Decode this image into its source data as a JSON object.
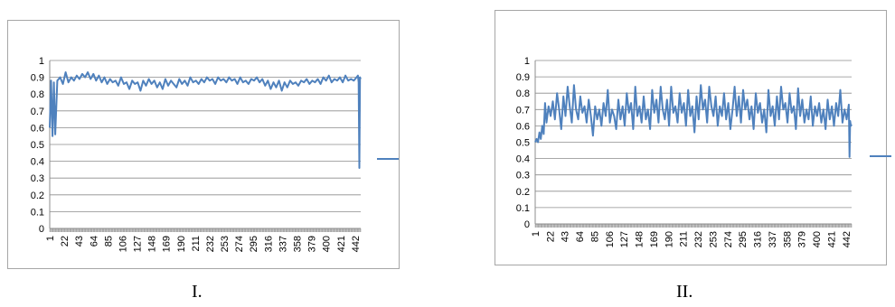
{
  "captions": [
    "I.",
    "II."
  ],
  "colors": {
    "series": "#4f81bd",
    "grid": "#8c8c8c",
    "axis": "#8c8c8c",
    "border": "#a6a6a6"
  },
  "chart_data": [
    {
      "type": "line",
      "title": "",
      "xlabel": "",
      "ylabel": "",
      "ylim": [
        0,
        1
      ],
      "y_ticks": [
        "0",
        "0.1",
        "0.2",
        "0.3",
        "0.4",
        "0.5",
        "0.6",
        "0.7",
        "0.8",
        "0.9",
        "1"
      ],
      "x_tick_labels": [
        "1",
        "22",
        "43",
        "64",
        "85",
        "106",
        "127",
        "148",
        "169",
        "190",
        "211",
        "232",
        "253",
        "274",
        "295",
        "316",
        "337",
        "358",
        "379",
        "400",
        "421",
        "442"
      ],
      "xlim": [
        1,
        450
      ],
      "grid": true,
      "legend": "right",
      "series": [
        {
          "x": [
            1,
            3,
            5,
            7,
            9,
            12,
            16,
            20,
            24,
            28,
            32,
            36,
            40,
            44,
            48,
            52,
            56,
            60,
            64,
            68,
            72,
            76,
            80,
            84,
            88,
            92,
            96,
            100,
            104,
            108,
            112,
            116,
            120,
            124,
            128,
            132,
            136,
            140,
            144,
            148,
            152,
            156,
            160,
            164,
            168,
            172,
            176,
            180,
            184,
            188,
            192,
            196,
            200,
            204,
            208,
            212,
            216,
            220,
            224,
            228,
            232,
            236,
            240,
            244,
            248,
            252,
            256,
            260,
            264,
            268,
            272,
            276,
            280,
            284,
            288,
            292,
            296,
            300,
            304,
            308,
            312,
            316,
            320,
            324,
            328,
            332,
            336,
            340,
            344,
            348,
            352,
            356,
            360,
            364,
            368,
            372,
            376,
            380,
            384,
            388,
            392,
            396,
            400,
            404,
            408,
            412,
            416,
            420,
            424,
            428,
            432,
            436,
            440,
            444,
            446,
            447,
            448,
            449,
            450
          ],
          "values": [
            0.6,
            0.88,
            0.55,
            0.87,
            0.56,
            0.88,
            0.9,
            0.86,
            0.93,
            0.87,
            0.9,
            0.88,
            0.91,
            0.89,
            0.92,
            0.9,
            0.93,
            0.89,
            0.92,
            0.88,
            0.91,
            0.87,
            0.9,
            0.86,
            0.89,
            0.87,
            0.88,
            0.85,
            0.9,
            0.86,
            0.87,
            0.83,
            0.88,
            0.86,
            0.87,
            0.82,
            0.88,
            0.85,
            0.89,
            0.86,
            0.88,
            0.84,
            0.87,
            0.83,
            0.89,
            0.85,
            0.88,
            0.86,
            0.84,
            0.89,
            0.86,
            0.88,
            0.85,
            0.9,
            0.87,
            0.88,
            0.86,
            0.89,
            0.87,
            0.9,
            0.88,
            0.89,
            0.86,
            0.9,
            0.88,
            0.89,
            0.87,
            0.9,
            0.88,
            0.89,
            0.86,
            0.9,
            0.87,
            0.88,
            0.86,
            0.89,
            0.88,
            0.9,
            0.87,
            0.89,
            0.85,
            0.88,
            0.83,
            0.87,
            0.84,
            0.88,
            0.82,
            0.87,
            0.84,
            0.88,
            0.86,
            0.87,
            0.85,
            0.88,
            0.87,
            0.89,
            0.86,
            0.88,
            0.87,
            0.89,
            0.86,
            0.9,
            0.88,
            0.91,
            0.87,
            0.89,
            0.88,
            0.9,
            0.87,
            0.91,
            0.88,
            0.89,
            0.88,
            0.9,
            0.91,
            0.87,
            0.36,
            0.9,
            0.89
          ]
        }
      ]
    },
    {
      "type": "line",
      "title": "",
      "xlabel": "",
      "ylabel": "",
      "ylim": [
        0,
        1
      ],
      "y_ticks": [
        "0",
        "0.1",
        "0.2",
        "0.3",
        "0.4",
        "0.5",
        "0.6",
        "0.7",
        "0.8",
        "0.9",
        "1"
      ],
      "x_tick_labels": [
        "1",
        "22",
        "43",
        "64",
        "85",
        "106",
        "127",
        "148",
        "169",
        "190",
        "211",
        "232",
        "253",
        "274",
        "295",
        "316",
        "337",
        "358",
        "379",
        "400",
        "421",
        "442"
      ],
      "xlim": [
        1,
        450
      ],
      "grid": true,
      "legend": "right",
      "series": [
        {
          "x": [
            1,
            3,
            5,
            7,
            9,
            11,
            13,
            15,
            17,
            20,
            23,
            26,
            29,
            32,
            35,
            38,
            41,
            44,
            47,
            50,
            53,
            56,
            59,
            62,
            65,
            68,
            71,
            74,
            77,
            80,
            83,
            86,
            89,
            92,
            95,
            98,
            101,
            104,
            107,
            110,
            113,
            116,
            119,
            122,
            125,
            128,
            131,
            134,
            137,
            140,
            143,
            146,
            149,
            152,
            155,
            158,
            161,
            164,
            167,
            170,
            173,
            176,
            179,
            182,
            185,
            188,
            191,
            194,
            197,
            200,
            203,
            206,
            209,
            212,
            215,
            218,
            221,
            224,
            227,
            230,
            233,
            236,
            239,
            242,
            245,
            248,
            251,
            254,
            257,
            260,
            263,
            266,
            269,
            272,
            275,
            278,
            281,
            284,
            287,
            290,
            293,
            296,
            299,
            302,
            305,
            308,
            311,
            314,
            317,
            320,
            323,
            326,
            329,
            332,
            335,
            338,
            341,
            344,
            347,
            350,
            353,
            356,
            359,
            362,
            365,
            368,
            371,
            374,
            377,
            380,
            383,
            386,
            389,
            392,
            395,
            398,
            401,
            404,
            407,
            410,
            413,
            416,
            419,
            422,
            425,
            428,
            431,
            434,
            437,
            440,
            443,
            446,
            447,
            448,
            449,
            450
          ],
          "values": [
            0.5,
            0.52,
            0.5,
            0.56,
            0.52,
            0.6,
            0.55,
            0.74,
            0.62,
            0.72,
            0.66,
            0.75,
            0.64,
            0.8,
            0.7,
            0.58,
            0.78,
            0.66,
            0.84,
            0.72,
            0.62,
            0.85,
            0.7,
            0.64,
            0.78,
            0.68,
            0.72,
            0.62,
            0.76,
            0.66,
            0.54,
            0.72,
            0.64,
            0.7,
            0.6,
            0.74,
            0.66,
            0.82,
            0.62,
            0.7,
            0.66,
            0.58,
            0.76,
            0.64,
            0.72,
            0.6,
            0.8,
            0.68,
            0.74,
            0.58,
            0.84,
            0.66,
            0.72,
            0.62,
            0.78,
            0.64,
            0.7,
            0.58,
            0.82,
            0.68,
            0.76,
            0.62,
            0.84,
            0.7,
            0.64,
            0.76,
            0.6,
            0.84,
            0.68,
            0.72,
            0.62,
            0.8,
            0.68,
            0.74,
            0.6,
            0.82,
            0.66,
            0.72,
            0.56,
            0.78,
            0.64,
            0.85,
            0.7,
            0.76,
            0.62,
            0.84,
            0.72,
            0.66,
            0.78,
            0.6,
            0.72,
            0.66,
            0.8,
            0.64,
            0.74,
            0.58,
            0.7,
            0.84,
            0.66,
            0.78,
            0.62,
            0.82,
            0.7,
            0.76,
            0.64,
            0.72,
            0.58,
            0.8,
            0.68,
            0.74,
            0.62,
            0.7,
            0.56,
            0.82,
            0.66,
            0.72,
            0.6,
            0.78,
            0.64,
            0.84,
            0.7,
            0.74,
            0.62,
            0.8,
            0.68,
            0.72,
            0.58,
            0.83,
            0.66,
            0.76,
            0.62,
            0.7,
            0.64,
            0.78,
            0.6,
            0.72,
            0.66,
            0.74,
            0.62,
            0.7,
            0.58,
            0.76,
            0.64,
            0.72,
            0.6,
            0.74,
            0.66,
            0.82,
            0.62,
            0.7,
            0.64,
            0.73,
            0.41,
            0.63,
            0.6,
            0.61
          ],
          "note": ""
        }
      ]
    }
  ]
}
